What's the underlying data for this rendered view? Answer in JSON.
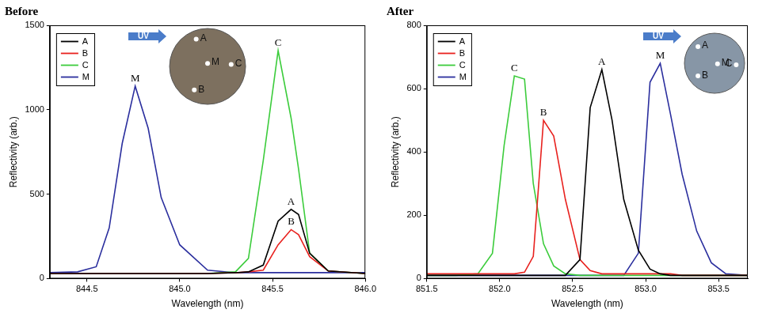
{
  "chart_data": [
    {
      "type": "line",
      "title": "Before",
      "x_label": "Wavelength (nm)",
      "y_label": "Reflectivity (arb.)",
      "xlim": [
        844.3,
        846.0
      ],
      "xticks": [
        844.5,
        {
          "value": 845,
          "label": "845.0"
        },
        845.5,
        {
          "value": 846,
          "label": "846.0"
        }
      ],
      "ylim": [
        0,
        1500
      ],
      "yticks": [
        0,
        500,
        1000,
        1500
      ],
      "grid": false,
      "legend": "upper left",
      "x": [
        844.3,
        844.45,
        844.55,
        844.62,
        844.69,
        844.76,
        844.83,
        844.9,
        845.0,
        845.15,
        845.3,
        845.37,
        845.45,
        845.53,
        845.6,
        845.64,
        845.7,
        845.8,
        846.0
      ],
      "series": [
        {
          "name": "A",
          "color": "#000000",
          "values": [
            30,
            30,
            30,
            30,
            30,
            30,
            30,
            30,
            30,
            30,
            35,
            40,
            80,
            340,
            410,
            380,
            150,
            45,
            30
          ]
        },
        {
          "name": "B",
          "color": "#e8211e",
          "values": [
            30,
            30,
            30,
            30,
            30,
            30,
            30,
            30,
            30,
            30,
            35,
            40,
            50,
            200,
            290,
            260,
            130,
            45,
            30
          ]
        },
        {
          "name": "C",
          "color": "#3ccc3c",
          "values": [
            30,
            30,
            30,
            30,
            30,
            30,
            30,
            30,
            30,
            30,
            40,
            120,
            700,
            1350,
            950,
            650,
            150,
            45,
            30
          ]
        },
        {
          "name": "M",
          "color": "#2b2f9e",
          "values": [
            35,
            40,
            70,
            300,
            800,
            1140,
            890,
            480,
            200,
            50,
            35,
            35,
            35,
            35,
            35,
            35,
            35,
            35,
            35
          ]
        }
      ],
      "annotations": [
        "M",
        "C",
        "A",
        "B"
      ],
      "inset": {
        "arrow_label": "UV",
        "spots": [
          "A",
          "M",
          "C",
          "B"
        ]
      }
    },
    {
      "type": "line",
      "title": "After",
      "x_label": "Wavelength (nm)",
      "y_label": "Reflectivity (arb.)",
      "xlim": [
        851.5,
        853.7
      ],
      "xticks": [
        851.5,
        {
          "value": 852,
          "label": "852.0"
        },
        852.5,
        {
          "value": 853,
          "label": "853.0"
        },
        853.5
      ],
      "ylim": [
        0,
        800
      ],
      "yticks": [
        0,
        200,
        400,
        600,
        800
      ],
      "grid": false,
      "legend": "upper left",
      "x": [
        851.5,
        851.7,
        851.85,
        851.95,
        852.03,
        852.1,
        852.17,
        852.23,
        852.3,
        852.37,
        852.45,
        852.55,
        852.62,
        852.7,
        852.77,
        852.85,
        852.95,
        853.03,
        853.1,
        853.17,
        853.25,
        853.35,
        853.45,
        853.55,
        853.7
      ],
      "series": [
        {
          "name": "A",
          "color": "#000000",
          "values": [
            10,
            10,
            10,
            10,
            10,
            10,
            10,
            10,
            10,
            10,
            10,
            60,
            540,
            660,
            500,
            250,
            90,
            30,
            15,
            10,
            10,
            10,
            10,
            10,
            10
          ]
        },
        {
          "name": "B",
          "color": "#e8211e",
          "values": [
            15,
            15,
            15,
            15,
            15,
            15,
            20,
            70,
            500,
            450,
            250,
            60,
            25,
            15,
            15,
            15,
            15,
            15,
            15,
            15,
            10,
            10,
            10,
            10,
            10
          ]
        },
        {
          "name": "C",
          "color": "#3ccc3c",
          "values": [
            10,
            10,
            15,
            80,
            420,
            640,
            630,
            300,
            110,
            40,
            15,
            10,
            10,
            10,
            10,
            10,
            10,
            10,
            10,
            10,
            10,
            10,
            10,
            10,
            10
          ]
        },
        {
          "name": "M",
          "color": "#2b2f9e",
          "values": [
            10,
            10,
            10,
            10,
            10,
            10,
            10,
            10,
            10,
            10,
            10,
            10,
            10,
            10,
            10,
            10,
            80,
            620,
            680,
            520,
            330,
            150,
            50,
            15,
            10
          ]
        }
      ],
      "annotations": [
        "C",
        "B",
        "A",
        "M"
      ],
      "inset": {
        "arrow_label": "UV",
        "spots": [
          "A",
          "B",
          "M",
          "C"
        ]
      }
    }
  ]
}
